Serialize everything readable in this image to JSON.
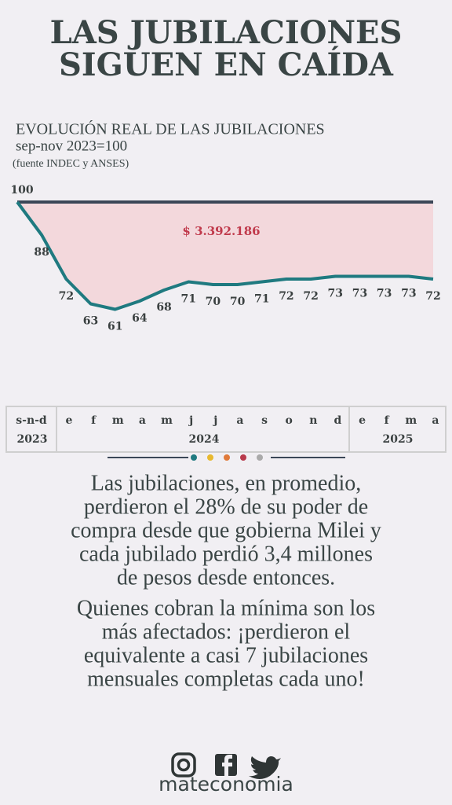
{
  "title": [
    "LAS JUBILACIONES",
    "SIGUEN EN CAÍDA"
  ],
  "chart_data": {
    "type": "line",
    "title": "EVOLUCIÓN REAL DE LAS JUBILACIONES",
    "subtitle": "sep-nov 2023=100",
    "source": "(fuente INDEC y ANSES)",
    "annotation": "$ 3.392.186",
    "categories": [
      null,
      "s-n-d",
      "e",
      "f",
      "m",
      "a",
      "m",
      "j",
      "j",
      "a",
      "s",
      "o",
      "n",
      "d",
      "e",
      "f",
      "m",
      "a"
    ],
    "years": [
      "2023",
      "2024",
      "2025"
    ],
    "values": [
      100,
      88,
      72,
      63,
      61,
      64,
      68,
      71,
      70,
      70,
      71,
      72,
      72,
      73,
      73,
      73,
      73,
      72
    ],
    "color": "#1f7a80",
    "reference_color": "#3b4757",
    "fill_color": "#f3d8dc",
    "ylim": [
      60,
      100
    ]
  },
  "paragraphs": [
    [
      "Las jubilaciones, en promedio,",
      "perdieron el 28% de su poder de",
      "compra desde que gobierna Milei y",
      "cada jubilado perdió 3,4 millones",
      "de pesos desde entonces."
    ],
    [
      "Quienes cobran la mínima son los",
      "más afectados: ¡perdieron el",
      "equivalente a casi 7 jubilaciones",
      "mensuales completas cada uno!"
    ]
  ],
  "footer": "mateconomia"
}
